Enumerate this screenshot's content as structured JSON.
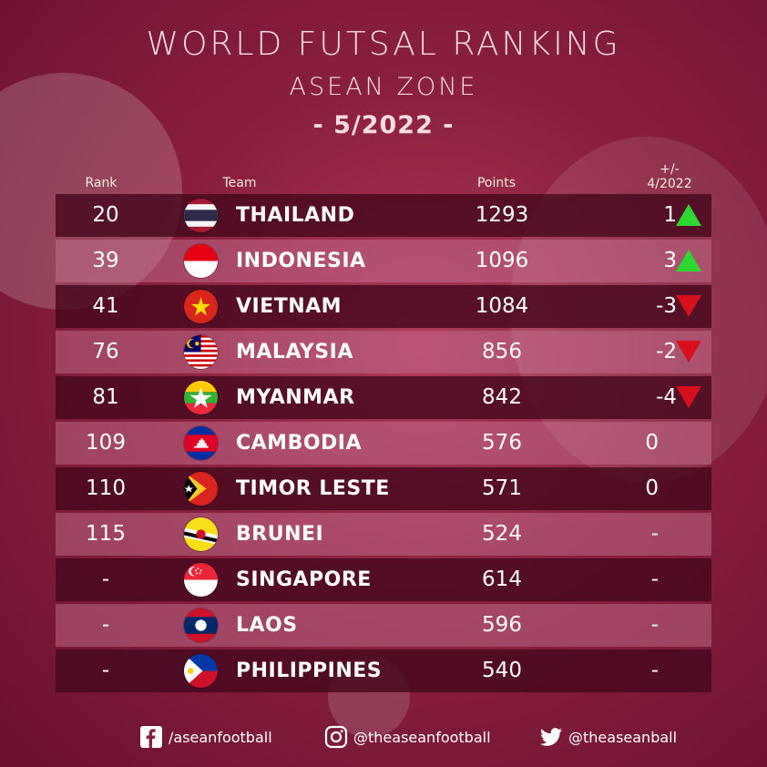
{
  "header": {
    "title": "WORLD FUTSAL RANKING",
    "subtitle": "ASEAN ZONE",
    "date": "- 5/2022 -"
  },
  "columns": {
    "rank": "Rank",
    "team": "Team",
    "points": "Points",
    "change_line1": "+/-",
    "change_line2": "4/2022"
  },
  "rows": [
    {
      "rank": "20",
      "team": "THAILAND",
      "points": "1293",
      "change": "1",
      "trend": "up",
      "flag": "thailand-flag-icon"
    },
    {
      "rank": "39",
      "team": "INDONESIA",
      "points": "1096",
      "change": "3",
      "trend": "up",
      "flag": "indonesia-flag-icon"
    },
    {
      "rank": "41",
      "team": "VIETNAM",
      "points": "1084",
      "change": "-3",
      "trend": "down",
      "flag": "vietnam-flag-icon"
    },
    {
      "rank": "76",
      "team": "MALAYSIA",
      "points": "856",
      "change": "-2",
      "trend": "down",
      "flag": "malaysia-flag-icon"
    },
    {
      "rank": "81",
      "team": "MYANMAR",
      "points": "842",
      "change": "-4",
      "trend": "down",
      "flag": "myanmar-flag-icon"
    },
    {
      "rank": "109",
      "team": "CAMBODIA",
      "points": "576",
      "change": "0",
      "trend": "none",
      "flag": "cambodia-flag-icon"
    },
    {
      "rank": "110",
      "team": "TIMOR LESTE",
      "points": "571",
      "change": "0",
      "trend": "none",
      "flag": "timor-leste-flag-icon"
    },
    {
      "rank": "115",
      "team": "BRUNEI",
      "points": "524",
      "change": "-",
      "trend": "none",
      "flag": "brunei-flag-icon"
    },
    {
      "rank": "-",
      "team": "SINGAPORE",
      "points": "614",
      "change": "-",
      "trend": "none",
      "flag": "singapore-flag-icon"
    },
    {
      "rank": "-",
      "team": "LAOS",
      "points": "596",
      "change": "-",
      "trend": "none",
      "flag": "laos-flag-icon"
    },
    {
      "rank": "-",
      "team": "PHILIPPINES",
      "points": "540",
      "change": "-",
      "trend": "none",
      "flag": "philippines-flag-icon"
    }
  ],
  "colors": {
    "up": "#2ed82e",
    "down": "#d8101c",
    "row_dark": "#46081e",
    "background": "#8a1f3d"
  },
  "footer": {
    "facebook": "/aseanfootball",
    "instagram": "@theaseanfootball",
    "twitter": "@theaseanball"
  }
}
